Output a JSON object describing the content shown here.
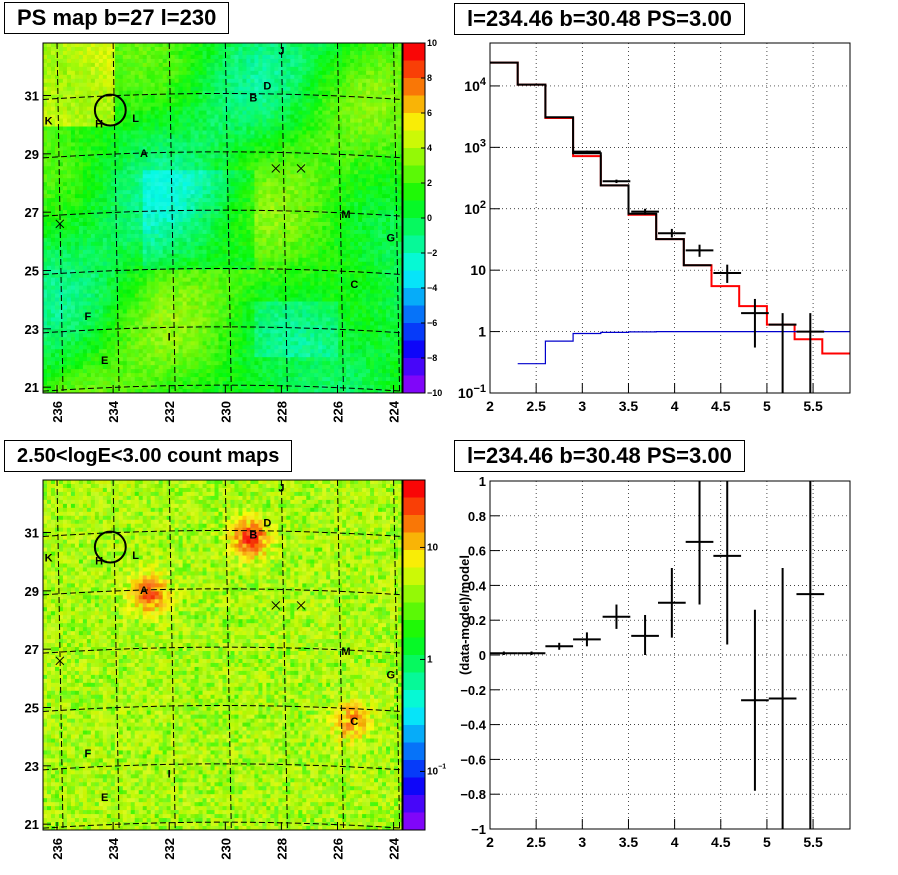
{
  "panels": {
    "tl_title": "PS map b=27 l=230",
    "tr_title": "l=234.46 b=30.48 PS=3.00",
    "bl_title": "2.50<logE<3.00 count maps",
    "br_title": "l=234.46 b=30.48 PS=3.00"
  },
  "chart_data": [
    {
      "type": "heatmap",
      "title": "PS map b=27 l=230",
      "x_ticks": [
        "236",
        "234",
        "232",
        "230",
        "228",
        "226",
        "224"
      ],
      "x_range": [
        236.5,
        223.7
      ],
      "y_ticks": [
        "21",
        "23",
        "25",
        "27",
        "29",
        "31"
      ],
      "y_range": [
        20.8,
        32.8
      ],
      "colorbar": {
        "scale": "linear",
        "range": [
          -10,
          10
        ],
        "tick_labels": [
          "10",
          "8",
          "6",
          "4",
          "2",
          "0",
          "-2",
          "-4",
          "-6",
          "-8",
          "-10"
        ]
      },
      "source_labels": [
        {
          "text": "J",
          "l": 228.0,
          "b": 32.4
        },
        {
          "text": "D",
          "l": 228.5,
          "b": 31.2
        },
        {
          "text": "B",
          "l": 229.0,
          "b": 30.8
        },
        {
          "text": "L",
          "l": 233.2,
          "b": 30.1
        },
        {
          "text": "K",
          "l": 236.3,
          "b": 30.0
        },
        {
          "text": "H",
          "l": 234.5,
          "b": 29.9
        },
        {
          "text": "A",
          "l": 232.9,
          "b": 28.9
        },
        {
          "text": "M",
          "l": 225.7,
          "b": 26.8
        },
        {
          "text": "G",
          "l": 224.1,
          "b": 26.0
        },
        {
          "text": "C",
          "l": 225.4,
          "b": 24.4
        },
        {
          "text": "F",
          "l": 234.9,
          "b": 23.3
        },
        {
          "text": "I",
          "l": 232.0,
          "b": 22.6
        },
        {
          "text": "E",
          "l": 234.3,
          "b": 21.8
        }
      ],
      "markers": [
        {
          "l": 228.2,
          "b": 28.5
        },
        {
          "l": 227.3,
          "b": 28.5
        },
        {
          "l": 235.9,
          "b": 26.6
        }
      ],
      "circle": {
        "l": 234.1,
        "b": 30.5,
        "radius_deg": 0.55
      }
    },
    {
      "type": "line",
      "title": "l=234.46 b=30.48 PS=3.00",
      "xlim": [
        2,
        5.9
      ],
      "ylim": [
        0.1,
        50000
      ],
      "yscale": "log",
      "x_ticks": [
        "2",
        "2.5",
        "3",
        "3.5",
        "4",
        "4.5",
        "5",
        "5.5"
      ],
      "y_ticks": [
        "10^-1",
        "1",
        "10",
        "10^2",
        "10^3",
        "10^4"
      ],
      "grid": true,
      "series": [
        {
          "color": "#ff0000",
          "style": "step",
          "edges": [
            2.0,
            2.3,
            2.6,
            2.9,
            3.2,
            3.5,
            3.8,
            4.1,
            4.4,
            4.7,
            5.0,
            5.3,
            5.6,
            5.9
          ],
          "values": [
            24000,
            10500,
            3000,
            720,
            240,
            80,
            32,
            12,
            5.5,
            2.6,
            1.3,
            0.75,
            0.44
          ]
        },
        {
          "color": "#000000",
          "style": "step",
          "edges": [
            2.0,
            2.3,
            2.6,
            2.9,
            3.2,
            3.5,
            3.8,
            4.1,
            4.4
          ],
          "values": [
            24000,
            10500,
            3100,
            800,
            240,
            83,
            32,
            12
          ]
        },
        {
          "color": "#0000cc",
          "style": "step",
          "edges": [
            2.3,
            2.6,
            2.9,
            3.2,
            3.5,
            3.8,
            4.1,
            4.4,
            4.7,
            5.0,
            5.3,
            5.6,
            5.9
          ],
          "values": [
            0.3,
            0.7,
            0.93,
            0.97,
            0.99,
            1.0,
            1.0,
            1.0,
            1.0,
            1.0,
            1.0,
            1.0
          ]
        }
      ],
      "error_points": [
        {
          "x": 3.05,
          "y": 850,
          "xerr": 0.15,
          "ylo": 820,
          "yhi": 880
        },
        {
          "x": 3.37,
          "y": 280,
          "xerr": 0.15,
          "ylo": 262,
          "yhi": 298
        },
        {
          "x": 3.68,
          "y": 90,
          "xerr": 0.15,
          "ylo": 80,
          "yhi": 100
        },
        {
          "x": 3.97,
          "y": 40,
          "xerr": 0.15,
          "ylo": 34,
          "yhi": 47
        },
        {
          "x": 4.27,
          "y": 21,
          "xerr": 0.15,
          "ylo": 16.5,
          "yhi": 26
        },
        {
          "x": 4.57,
          "y": 9,
          "xerr": 0.15,
          "ylo": 6.2,
          "yhi": 12.3
        },
        {
          "x": 4.87,
          "y": 2,
          "xerr": 0.15,
          "ylo": 0.55,
          "yhi": 3.4
        },
        {
          "x": 5.17,
          "y": 1.3,
          "xerr": 0.15,
          "ylo": 0.1,
          "yhi": 2.0
        },
        {
          "x": 5.47,
          "y": 1.0,
          "xerr": 0.15,
          "ylo": 0.1,
          "yhi": 2.0
        }
      ]
    },
    {
      "type": "heatmap",
      "title": "2.50<logE<3.00 count maps",
      "x_ticks": [
        "236",
        "234",
        "232",
        "230",
        "228",
        "226",
        "224"
      ],
      "x_range": [
        236.5,
        223.7
      ],
      "y_ticks": [
        "21",
        "23",
        "25",
        "27",
        "29",
        "31"
      ],
      "y_range": [
        20.8,
        32.8
      ],
      "colorbar": {
        "scale": "log",
        "range": [
          0.03,
          40
        ],
        "tick_labels": [
          "10",
          "1",
          "10^-1"
        ]
      },
      "hotspots": [
        {
          "label": "B",
          "l": 229.1,
          "b": 30.8,
          "strength": 1.0
        },
        {
          "label": "A",
          "l": 232.7,
          "b": 28.9,
          "strength": 0.85
        },
        {
          "label": "C",
          "l": 225.5,
          "b": 24.5,
          "strength": 0.7
        }
      ]
    },
    {
      "type": "scatter",
      "title": "l=234.46 b=30.48 PS=3.00",
      "ylabel": "(data-model)/model",
      "xlim": [
        2,
        5.9
      ],
      "ylim": [
        -1,
        1
      ],
      "x_ticks": [
        "2",
        "2.5",
        "3",
        "3.5",
        "4",
        "4.5",
        "5",
        "5.5"
      ],
      "y_ticks": [
        "−1",
        "−0.8",
        "−0.6",
        "−0.4",
        "−0.2",
        "0",
        "0.2",
        "0.4",
        "0.6",
        "0.8",
        "1"
      ],
      "grid": true,
      "points": [
        {
          "x": 2.15,
          "y": 0.01,
          "xerr": 0.15,
          "ylo": 0.0,
          "yhi": 0.02
        },
        {
          "x": 2.45,
          "y": 0.01,
          "xerr": 0.15,
          "ylo": 0.0,
          "yhi": 0.02
        },
        {
          "x": 2.75,
          "y": 0.05,
          "xerr": 0.15,
          "ylo": 0.03,
          "yhi": 0.07
        },
        {
          "x": 3.05,
          "y": 0.09,
          "xerr": 0.15,
          "ylo": 0.05,
          "yhi": 0.13
        },
        {
          "x": 3.37,
          "y": 0.22,
          "xerr": 0.15,
          "ylo": 0.15,
          "yhi": 0.29
        },
        {
          "x": 3.68,
          "y": 0.11,
          "xerr": 0.15,
          "ylo": 0.0,
          "yhi": 0.23
        },
        {
          "x": 3.97,
          "y": 0.3,
          "xerr": 0.15,
          "ylo": 0.1,
          "yhi": 0.5
        },
        {
          "x": 4.27,
          "y": 0.65,
          "xerr": 0.15,
          "ylo": 0.29,
          "yhi": 1.0
        },
        {
          "x": 4.57,
          "y": 0.57,
          "xerr": 0.15,
          "ylo": 0.06,
          "yhi": 1.0
        },
        {
          "x": 4.87,
          "y": -0.26,
          "xerr": 0.15,
          "ylo": -0.78,
          "yhi": 0.26
        },
        {
          "x": 5.17,
          "y": -0.25,
          "xerr": 0.15,
          "ylo": -1.0,
          "yhi": 0.5
        },
        {
          "x": 5.47,
          "y": 0.35,
          "xerr": 0.15,
          "ylo": -1.0,
          "yhi": 1.0
        }
      ]
    }
  ]
}
